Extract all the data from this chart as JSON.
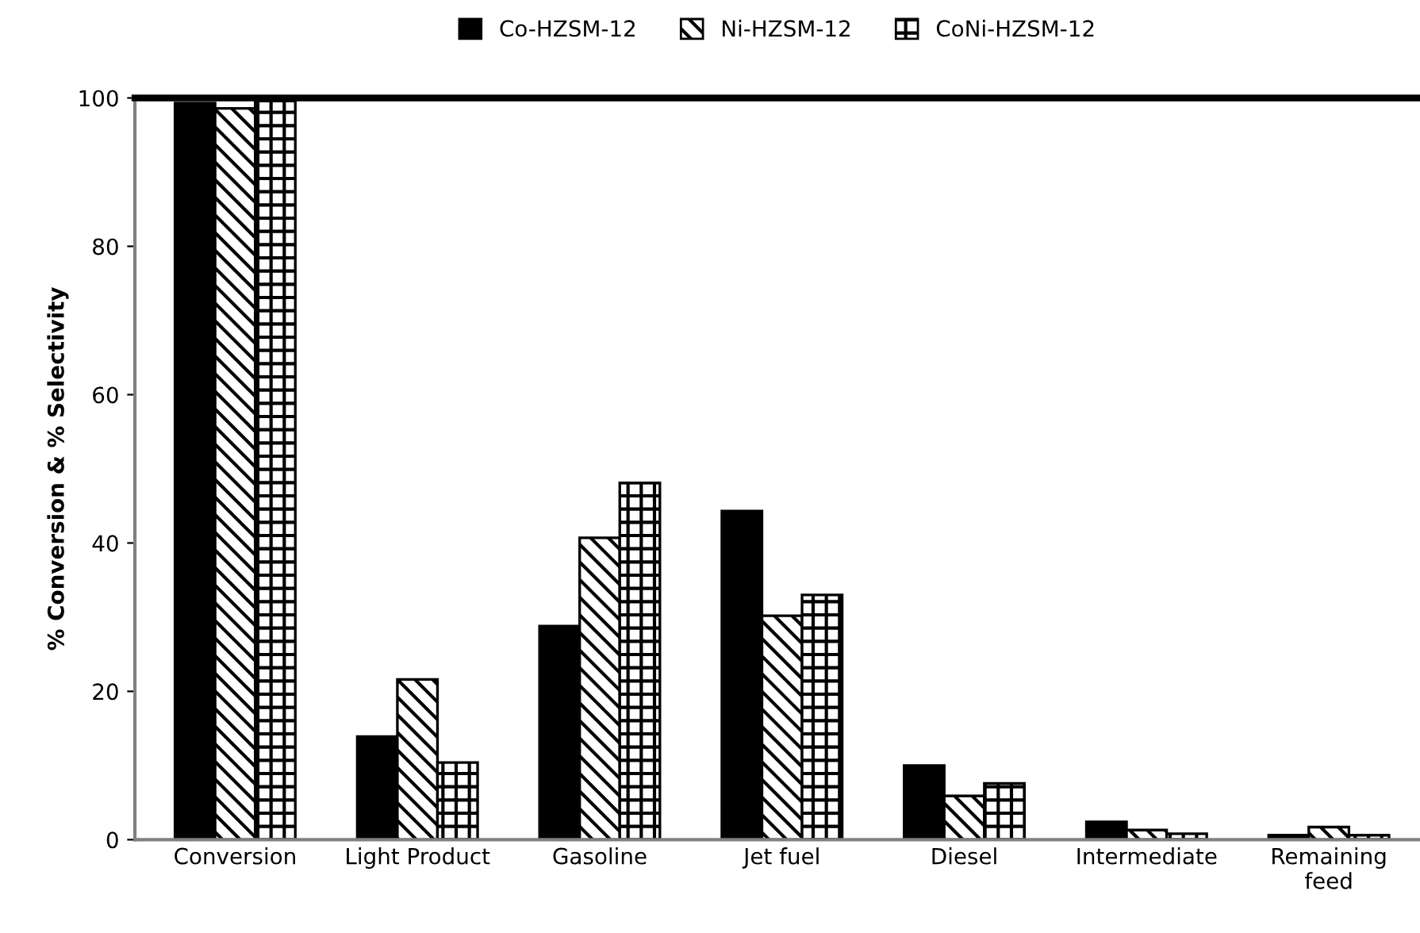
{
  "chart_data": {
    "type": "bar",
    "ylabel": "% Conversion & % Selectivity",
    "categories": [
      "Conversion",
      "Light Product",
      "Gasoline",
      "Jet fuel",
      "Diesel",
      "Intermediate",
      "Remaining\nfeed"
    ],
    "series": [
      {
        "name": "Co-HZSM-12",
        "color": "#000000",
        "values": [
          99.3,
          13.9,
          28.8,
          44.3,
          10.0,
          2.4,
          0.6
        ]
      },
      {
        "name": "Ni-HZSM-12",
        "color": "#000000",
        "values": [
          98.6,
          21.6,
          40.7,
          30.2,
          5.9,
          1.3,
          1.7
        ]
      },
      {
        "name": "CoNi-HZSM-12",
        "color": "#000000",
        "values": [
          99.6,
          10.4,
          48.1,
          33.0,
          7.6,
          0.8,
          0.6
        ]
      }
    ],
    "ylim": [
      0,
      100
    ],
    "yticks": [
      0,
      20,
      40,
      60,
      80,
      100
    ],
    "grid": false,
    "legend": "top"
  }
}
